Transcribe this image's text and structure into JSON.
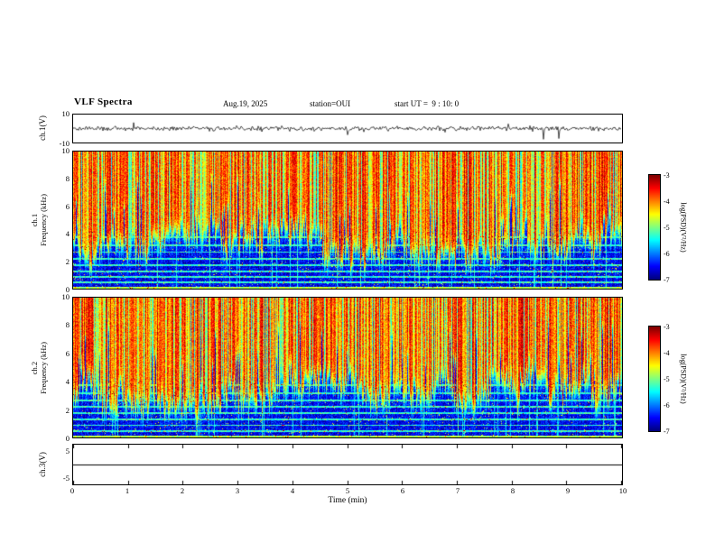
{
  "header": {
    "title": "VLF Spectra",
    "date": "Aug.19, 2025",
    "station": "station=OUI",
    "start_ut": "start UT =  9 : 10: 0"
  },
  "xaxis": {
    "label": "Time (min)",
    "range": [
      0,
      10
    ],
    "ticks": [
      0,
      1,
      2,
      3,
      4,
      5,
      6,
      7,
      8,
      9,
      10
    ]
  },
  "colorbar": {
    "label": "log(PSD)(V²/Hz)",
    "ticks": [
      -3,
      -4,
      -5,
      -6,
      -7
    ],
    "range": [
      -3,
      -7
    ],
    "colormap": "jet"
  },
  "chart_data": [
    {
      "id": "ch1-waveform",
      "type": "line",
      "ylabel": "ch.1(V)",
      "ylim": [
        -10,
        10
      ],
      "yticks": [
        10,
        -10
      ],
      "x_range": [
        0,
        10
      ],
      "summary": "broadband noise centered on 0 V, roughly ±2 V envelope, with intermittent impulsive spikes reaching about ±8 V over the 10 minute record"
    },
    {
      "id": "ch1-spectrogram",
      "type": "heatmap",
      "ylabel_lines": [
        "ch.1",
        "Frequency (kHz)"
      ],
      "ylim": [
        0,
        10
      ],
      "yticks": [
        10,
        8,
        6,
        4,
        2,
        0
      ],
      "zlim": [
        -7,
        -3
      ],
      "summary": "high PSD (yellow/orange/red, ~-4 to -3.5) above a wavy ~3-5 kHz boundary with dense green vertical streaks; low PSD (dark blue, ~-6.5) below ~3 kHz crossed by green horizontal interference lines and cyan speckles"
    },
    {
      "id": "ch2-spectrogram",
      "type": "heatmap",
      "ylabel_lines": [
        "ch.2",
        "Frequency (kHz)"
      ],
      "ylim": [
        0,
        10
      ],
      "yticks": [
        10,
        8,
        6,
        4,
        2,
        0
      ],
      "zlim": [
        -7,
        -3
      ],
      "summary": "similar to ch.1: energetic yellow/red band above ~3-5 kHz with vertical green streaks, dark blue low-frequency background with horizontal green lines"
    },
    {
      "id": "ch3-waveform",
      "type": "line",
      "ylabel": "ch.3(V)",
      "ylim": [
        -7.5,
        7.5
      ],
      "yticks": [
        5,
        -5
      ],
      "constant_value": 0,
      "summary": "flat line at 0 V (no signal on channel 3)"
    }
  ]
}
